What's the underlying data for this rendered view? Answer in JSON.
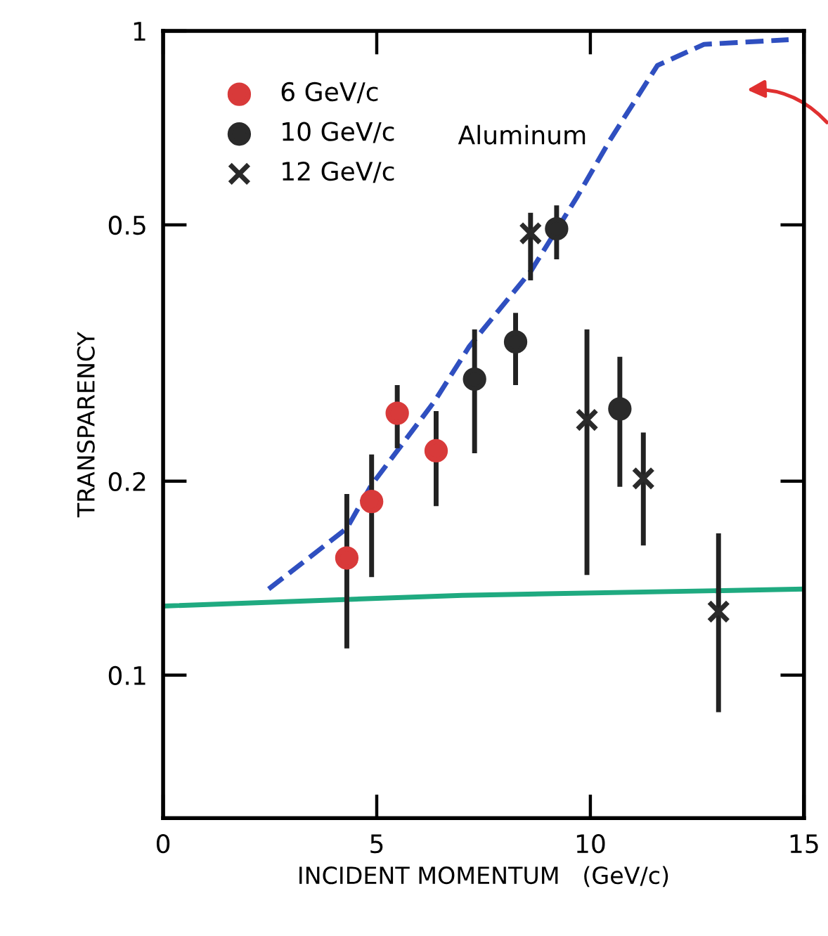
{
  "chart_data": {
    "type": "scatter",
    "xlabel": "INCIDENT MOMENTUM   (GeV/c)",
    "ylabel": "TRANSPARENCY",
    "log": "y",
    "xlim": [
      0,
      15
    ],
    "ylim": [
      0.06,
      1
    ],
    "xticks": [
      0,
      5,
      10,
      15
    ],
    "yticks": [
      {
        "value": 0.1,
        "label": "0.1"
      },
      {
        "value": 0.2,
        "label": "0.2"
      },
      {
        "value": 0.5,
        "label": "0.5"
      },
      {
        "value": 1,
        "label": "1"
      }
    ],
    "grid": false,
    "legend": "top left",
    "annotations": [
      "Aluminum"
    ],
    "series": [
      {
        "name": "6 GeV/c",
        "marker": "circle",
        "color": "#d83a3a",
        "x": [
          4.3,
          4.88,
          5.48,
          6.39
        ],
        "values": [
          0.152,
          0.186,
          0.255,
          0.223
        ],
        "errors": [
          [
            0.11,
            0.191
          ],
          [
            0.142,
            0.22
          ],
          [
            0.225,
            0.282
          ],
          [
            0.183,
            0.257
          ]
        ]
      },
      {
        "name": "10 GeV/c",
        "marker": "circle",
        "color": "#2a2a2a",
        "x": [
          7.29,
          8.25,
          9.21,
          10.69
        ],
        "values": [
          0.288,
          0.329,
          0.493,
          0.259
        ],
        "errors": [
          [
            0.221,
            0.344
          ],
          [
            0.282,
            0.365
          ],
          [
            0.442,
            0.536
          ],
          [
            0.196,
            0.312
          ]
        ]
      },
      {
        "name": "12 GeV/c",
        "marker": "cross",
        "color": "#2a2a2a",
        "x": [
          8.6,
          9.92,
          11.24,
          13.0
        ],
        "values": [
          0.485,
          0.249,
          0.202,
          0.1255
        ],
        "errors": [
          [
            0.41,
            0.522
          ],
          [
            0.143,
            0.344
          ],
          [
            0.159,
            0.238
          ],
          [
            0.0876,
            0.166
          ]
        ]
      },
      {
        "type": "line",
        "line_style": "dashed",
        "color": "#2f4fc0",
        "x": [
          2.47,
          4.3,
          4.87,
          6.35,
          7.17,
          8.61,
          9.7,
          10.46,
          11.57,
          12.66,
          14.64
        ],
        "values": [
          0.136,
          0.169,
          0.197,
          0.266,
          0.324,
          0.424,
          0.554,
          0.677,
          0.884,
          0.953,
          0.969
        ]
      },
      {
        "type": "line",
        "line_style": "solid",
        "color": "#1faa80",
        "x": [
          0,
          7,
          15
        ],
        "values": [
          0.128,
          0.133,
          0.136
        ]
      }
    ]
  }
}
